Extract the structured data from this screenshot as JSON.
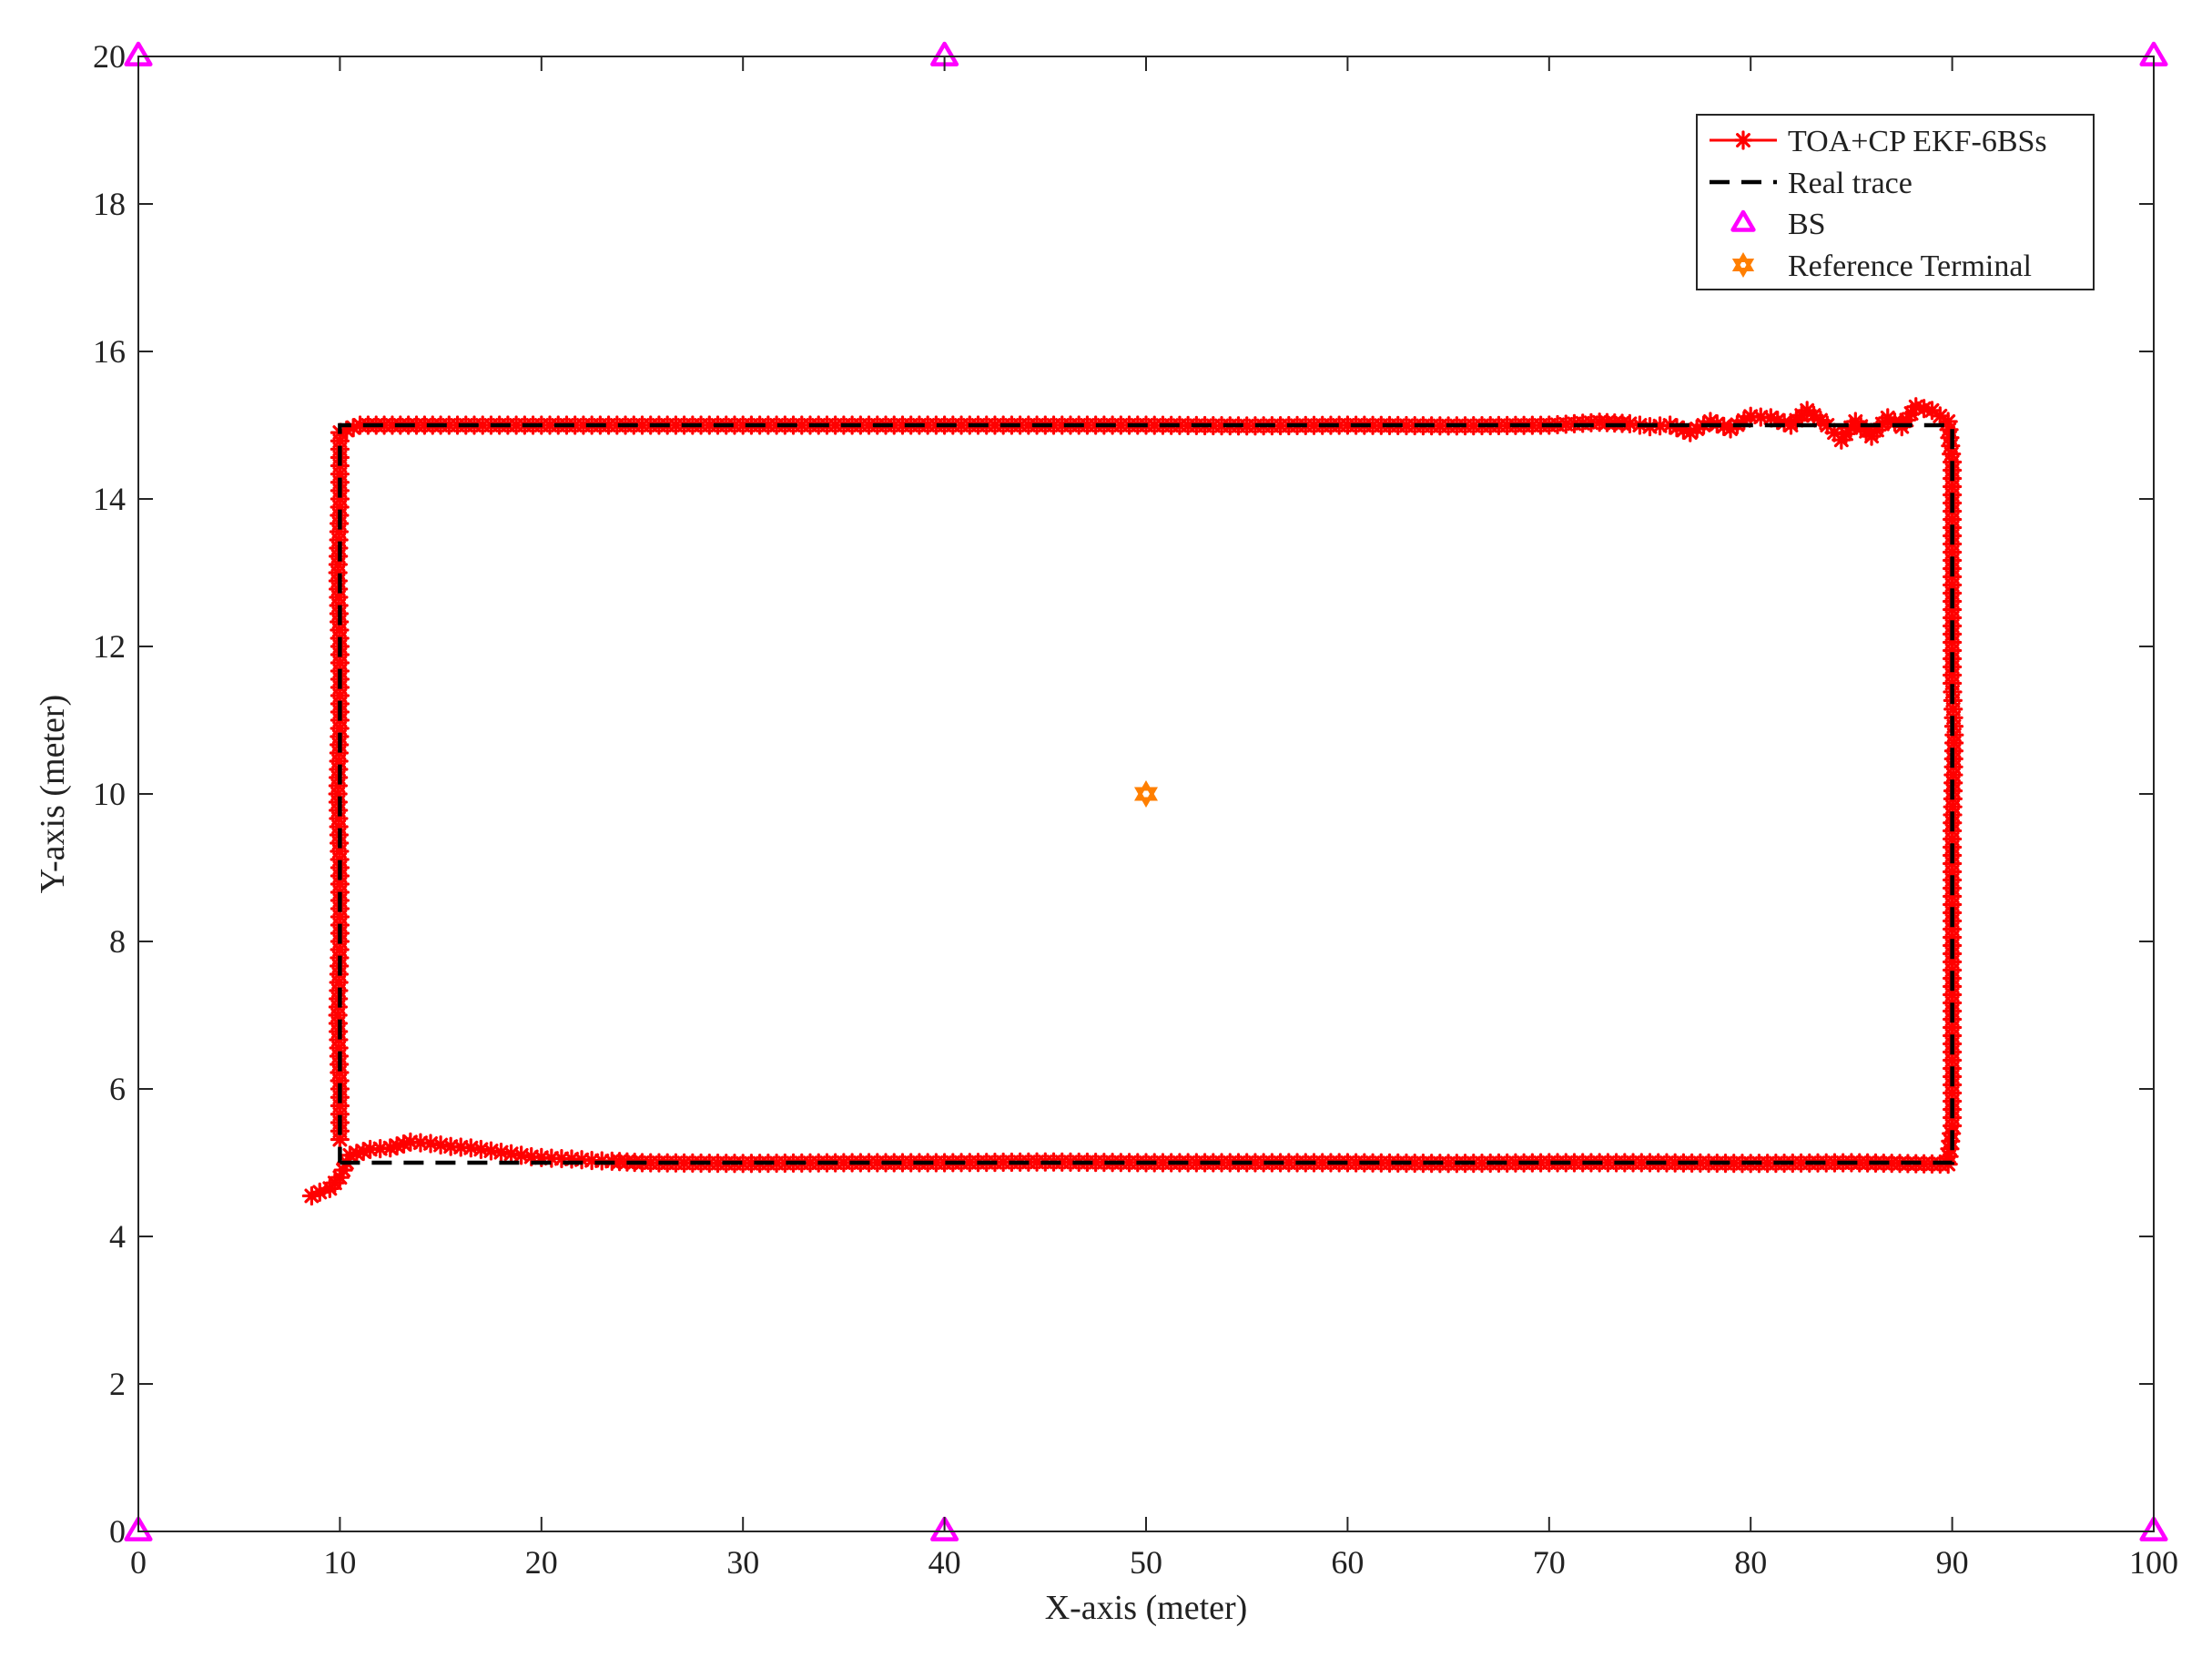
{
  "chart_data": {
    "type": "scatter",
    "xlabel": "X-axis (meter)",
    "ylabel": "Y-axis (meter)",
    "xlim": [
      0,
      100
    ],
    "ylim": [
      0,
      20
    ],
    "xticks": [
      0,
      10,
      20,
      30,
      40,
      50,
      60,
      70,
      80,
      90,
      100
    ],
    "yticks": [
      0,
      2,
      4,
      6,
      8,
      10,
      12,
      14,
      16,
      18,
      20
    ],
    "grid": false,
    "legend_position": "top-right",
    "series": [
      {
        "name": "TOA+CP EKF-6BSs",
        "kind": "line-with-asterisk-markers",
        "color": "#ff0000",
        "points": [
          [
            8.6,
            4.55
          ],
          [
            9.0,
            4.6
          ],
          [
            9.5,
            4.65
          ],
          [
            10.0,
            4.8
          ],
          [
            10.5,
            5.1
          ],
          [
            11.5,
            5.18
          ],
          [
            12.5,
            5.2
          ],
          [
            13.5,
            5.28
          ],
          [
            14.5,
            5.26
          ],
          [
            15.5,
            5.22
          ],
          [
            16.5,
            5.2
          ],
          [
            17.5,
            5.16
          ],
          [
            18.5,
            5.12
          ],
          [
            19.5,
            5.08
          ],
          [
            20.5,
            5.06
          ],
          [
            21.5,
            5.05
          ],
          [
            22.5,
            5.03
          ],
          [
            23.5,
            5.02
          ],
          [
            25,
            5.0
          ],
          [
            30,
            4.99
          ],
          [
            35,
            5.0
          ],
          [
            40,
            5.0
          ],
          [
            45,
            5.01
          ],
          [
            50,
            5.0
          ],
          [
            55,
            5.0
          ],
          [
            60,
            5.0
          ],
          [
            65,
            4.99
          ],
          [
            70,
            5.0
          ],
          [
            75,
            5.0
          ],
          [
            80,
            4.99
          ],
          [
            85,
            5.0
          ],
          [
            89.8,
            4.98
          ],
          [
            90.0,
            5.5
          ],
          [
            90.0,
            6.5
          ],
          [
            90.0,
            7.5
          ],
          [
            90.0,
            8.5
          ],
          [
            90.0,
            9.5
          ],
          [
            90.1,
            10.8
          ],
          [
            90.0,
            11.5
          ],
          [
            90.0,
            12.5
          ],
          [
            90.0,
            13.5
          ],
          [
            90.0,
            14.5
          ],
          [
            89.8,
            15.05
          ],
          [
            89.0,
            15.2
          ],
          [
            88.2,
            15.25
          ],
          [
            87.5,
            14.98
          ],
          [
            86.8,
            15.1
          ],
          [
            86.0,
            14.85
          ],
          [
            85.2,
            15.05
          ],
          [
            84.5,
            14.8
          ],
          [
            83.8,
            15.0
          ],
          [
            82.8,
            15.2
          ],
          [
            82.0,
            15.0
          ],
          [
            81.0,
            15.1
          ],
          [
            80.0,
            15.12
          ],
          [
            79.0,
            14.95
          ],
          [
            78.0,
            15.05
          ],
          [
            77.0,
            14.9
          ],
          [
            76.0,
            15.0
          ],
          [
            75.0,
            14.98
          ],
          [
            74.0,
            15.02
          ],
          [
            72.5,
            15.04
          ],
          [
            70,
            15.0
          ],
          [
            65,
            14.99
          ],
          [
            60,
            15.0
          ],
          [
            55,
            14.99
          ],
          [
            50,
            15.0
          ],
          [
            45,
            15.0
          ],
          [
            40,
            15.0
          ],
          [
            35,
            15.0
          ],
          [
            30,
            15.0
          ],
          [
            25,
            15.0
          ],
          [
            20,
            15.0
          ],
          [
            15,
            15.0
          ],
          [
            11,
            15.0
          ],
          [
            10.0,
            14.9
          ],
          [
            10.0,
            14.0
          ],
          [
            9.9,
            13.0
          ],
          [
            10.0,
            12.0
          ],
          [
            10.0,
            11.0
          ],
          [
            9.9,
            10.0
          ],
          [
            10.0,
            9.0
          ],
          [
            10.0,
            8.0
          ],
          [
            9.9,
            7.0
          ],
          [
            10.0,
            6.0
          ],
          [
            10.0,
            5.2
          ]
        ]
      },
      {
        "name": "Real trace",
        "kind": "dashed-line",
        "color": "#000000",
        "points": [
          [
            10,
            5
          ],
          [
            90,
            5
          ],
          [
            90,
            15
          ],
          [
            10,
            15
          ],
          [
            10,
            5
          ]
        ]
      },
      {
        "name": "BS",
        "kind": "triangle-markers",
        "color": "#ff00ff",
        "points": [
          [
            0,
            0
          ],
          [
            40,
            0
          ],
          [
            100,
            0
          ],
          [
            0,
            20
          ],
          [
            40,
            20
          ],
          [
            100,
            20
          ]
        ]
      },
      {
        "name": "Reference Terminal",
        "kind": "hexagram-marker",
        "color": "#ff7f00",
        "points": [
          [
            50,
            10
          ]
        ]
      }
    ]
  }
}
